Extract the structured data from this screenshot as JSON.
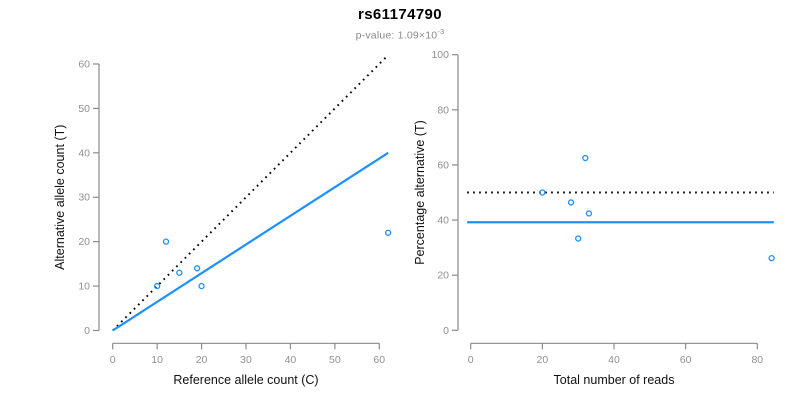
{
  "header": {
    "title": "rs61174790",
    "pvalue_text": "p-value: 1.09×10",
    "pvalue_exponent": "-3"
  },
  "colors": {
    "accent_blue": "#1E90FF",
    "axis": "#8a8a8a",
    "tick_label": "#909090",
    "axis_title": "#111111",
    "title": "#000000",
    "subtitle": "#8a8a8a",
    "dotted_line": "#000000"
  },
  "chart_data": [
    {
      "type": "scatter",
      "panel": "allele-counts",
      "xlabel": "Reference allele count (C)",
      "ylabel": "Alternative allele count (T)",
      "xlim": [
        0,
        62
      ],
      "ylim": [
        0,
        62
      ],
      "xticks": [
        0,
        10,
        20,
        30,
        40,
        50,
        60
      ],
      "yticks": [
        0,
        10,
        20,
        30,
        40,
        50,
        60
      ],
      "grid": false,
      "legend": "none",
      "points": [
        [
          10,
          10
        ],
        [
          12,
          20
        ],
        [
          15,
          13
        ],
        [
          19,
          14
        ],
        [
          20,
          10
        ],
        [
          62,
          22
        ]
      ],
      "lines": [
        {
          "name": "expected-50pct-identity-line",
          "style": "dotted",
          "color": "#000000",
          "from": [
            0,
            0
          ],
          "to": [
            62,
            62
          ]
        },
        {
          "name": "observed-ratio-regression-line",
          "style": "solid",
          "color": "#1E90FF",
          "from": [
            0,
            0
          ],
          "to": [
            62,
            40
          ]
        }
      ]
    },
    {
      "type": "scatter",
      "panel": "percentage-vs-coverage",
      "xlabel": "Total number of reads",
      "ylabel": "Percentage alternative (T)",
      "xlim": [
        0,
        85
      ],
      "ylim": [
        0,
        100
      ],
      "xticks": [
        0,
        20,
        40,
        60,
        80
      ],
      "yticks": [
        0,
        20,
        40,
        60,
        80,
        100
      ],
      "grid": false,
      "legend": "none",
      "points": [
        [
          20,
          50
        ],
        [
          28,
          46.4
        ],
        [
          30,
          33.3
        ],
        [
          32,
          62.5
        ],
        [
          33,
          42.4
        ],
        [
          84,
          26.2
        ]
      ],
      "lines": [
        {
          "name": "expected-50pct-line",
          "style": "dotted",
          "color": "#000000",
          "y": 50
        },
        {
          "name": "observed-pct-line",
          "style": "solid",
          "color": "#1E90FF",
          "y": 39.2
        }
      ]
    }
  ]
}
